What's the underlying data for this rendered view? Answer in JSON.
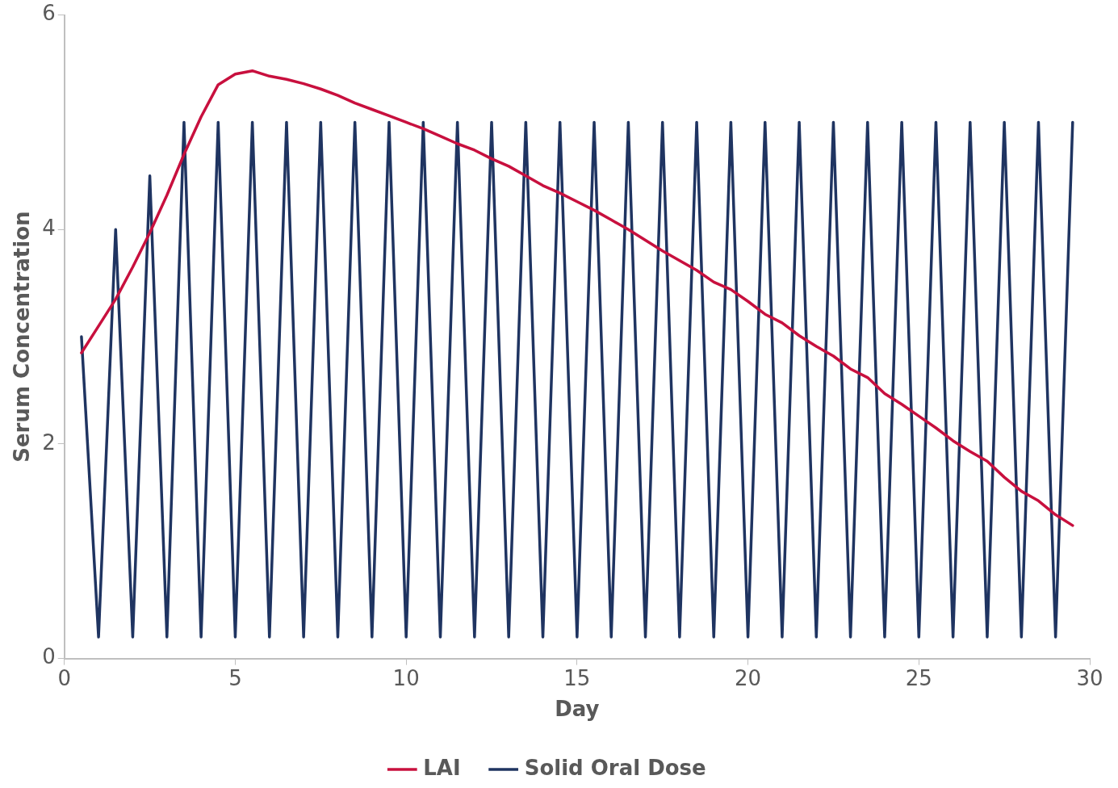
{
  "chart_data": {
    "type": "line",
    "xlabel": "Day",
    "ylabel": "Serum Concentration",
    "xlim": [
      0,
      30
    ],
    "xticks": [
      0,
      5,
      10,
      15,
      20,
      25,
      30
    ],
    "ylim": [
      0,
      6
    ],
    "yticks": [
      0,
      2,
      4,
      6
    ],
    "grid": false,
    "legend": "bottom",
    "marker": "none",
    "line_style": "solid",
    "series": [
      {
        "name": "LAI",
        "color": "#c8103e",
        "x": [
          0.5,
          1,
          1.5,
          2,
          2.5,
          3,
          3.5,
          4,
          4.5,
          5,
          5.5,
          6,
          6.5,
          7,
          7.5,
          8,
          8.5,
          9,
          9.5,
          10,
          10.5,
          11,
          11.5,
          12,
          12.5,
          13,
          13.5,
          14,
          14.5,
          15,
          15.5,
          16,
          16.5,
          17,
          17.5,
          18,
          18.5,
          19,
          19.5,
          20,
          20.5,
          21,
          21.5,
          22,
          22.5,
          23,
          23.5,
          24,
          24.5,
          25,
          25.5,
          26,
          26.5,
          27,
          27.5,
          28,
          28.5,
          29,
          29.5
        ],
        "values": [
          2.85,
          3.1,
          3.35,
          3.65,
          3.97,
          4.32,
          4.7,
          5.05,
          5.35,
          5.45,
          5.48,
          5.43,
          5.4,
          5.36,
          5.31,
          5.25,
          5.18,
          5.12,
          5.06,
          5.0,
          4.94,
          4.87,
          4.8,
          4.74,
          4.66,
          4.59,
          4.5,
          4.41,
          4.34,
          4.26,
          4.18,
          4.09,
          4.0,
          3.9,
          3.8,
          3.71,
          3.62,
          3.51,
          3.44,
          3.33,
          3.21,
          3.13,
          3.01,
          2.91,
          2.82,
          2.7,
          2.62,
          2.47,
          2.37,
          2.26,
          2.15,
          2.03,
          1.93,
          1.84,
          1.69,
          1.56,
          1.47,
          1.34,
          1.24
        ]
      },
      {
        "name": "Solid Oral Dose",
        "color": "#1f3461",
        "x": [
          0.5,
          1,
          1.5,
          2,
          2.5,
          3,
          3.5,
          4,
          4.5,
          5,
          5.5,
          6,
          6.5,
          7,
          7.5,
          8,
          8.5,
          9,
          9.5,
          10,
          10.5,
          11,
          11.5,
          12,
          12.5,
          13,
          13.5,
          14,
          14.5,
          15,
          15.5,
          16,
          16.5,
          17,
          17.5,
          18,
          18.5,
          19,
          19.5,
          20,
          20.5,
          21,
          21.5,
          22,
          22.5,
          23,
          23.5,
          24,
          24.5,
          25,
          25.5,
          26,
          26.5,
          27,
          27.5,
          28,
          28.5,
          29,
          29.5
        ],
        "values": [
          3.0,
          0.2,
          4.0,
          0.2,
          4.5,
          0.2,
          5.0,
          0.2,
          5.0,
          0.2,
          5.0,
          0.2,
          5.0,
          0.2,
          5.0,
          0.2,
          5.0,
          0.2,
          5.0,
          0.2,
          5.0,
          0.2,
          5.0,
          0.2,
          5.0,
          0.2,
          5.0,
          0.2,
          5.0,
          0.2,
          5.0,
          0.2,
          5.0,
          0.2,
          5.0,
          0.2,
          5.0,
          0.2,
          5.0,
          0.2,
          5.0,
          0.2,
          5.0,
          0.2,
          5.0,
          0.2,
          5.0,
          0.2,
          5.0,
          0.2,
          5.0,
          0.2,
          5.0,
          0.2,
          5.0,
          0.2,
          5.0,
          0.2,
          5.0
        ]
      }
    ]
  }
}
